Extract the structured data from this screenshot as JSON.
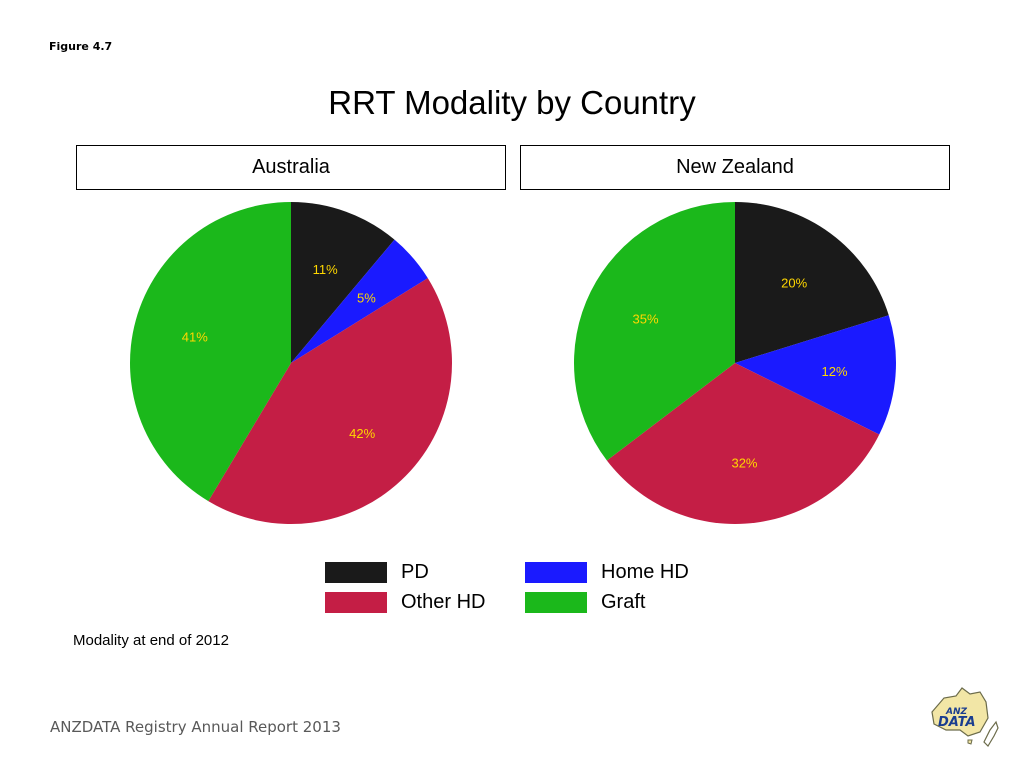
{
  "figure_label": "Figure 4.7",
  "footer": "ANZDATA Registry Annual Report 2013",
  "note": "Modality at end of 2012",
  "logo": {
    "icon": "anzdata-logo",
    "text_top": "ANZ",
    "text_main": "DATA"
  },
  "colors": {
    "PD": "#1a1a1a",
    "Home HD": "#1a1aff",
    "Other HD": "#c41e45",
    "Graft": "#1bb81b",
    "label": "#ffd700"
  },
  "chart_data": {
    "type": "pie",
    "title": "RRT Modality by Country",
    "categories": [
      "PD",
      "Home HD",
      "Other HD",
      "Graft"
    ],
    "panels": [
      {
        "name": "Australia",
        "values": [
          11,
          5,
          42,
          41
        ],
        "labels": [
          "11%",
          "5%",
          "42%",
          "41%"
        ]
      },
      {
        "name": "New Zealand",
        "values": [
          20,
          12,
          32,
          35
        ],
        "labels": [
          "20%",
          "12%",
          "32%",
          "35%"
        ]
      }
    ],
    "legend": {
      "position": "bottom",
      "items": [
        "PD",
        "Home HD",
        "Other HD",
        "Graft"
      ]
    }
  }
}
